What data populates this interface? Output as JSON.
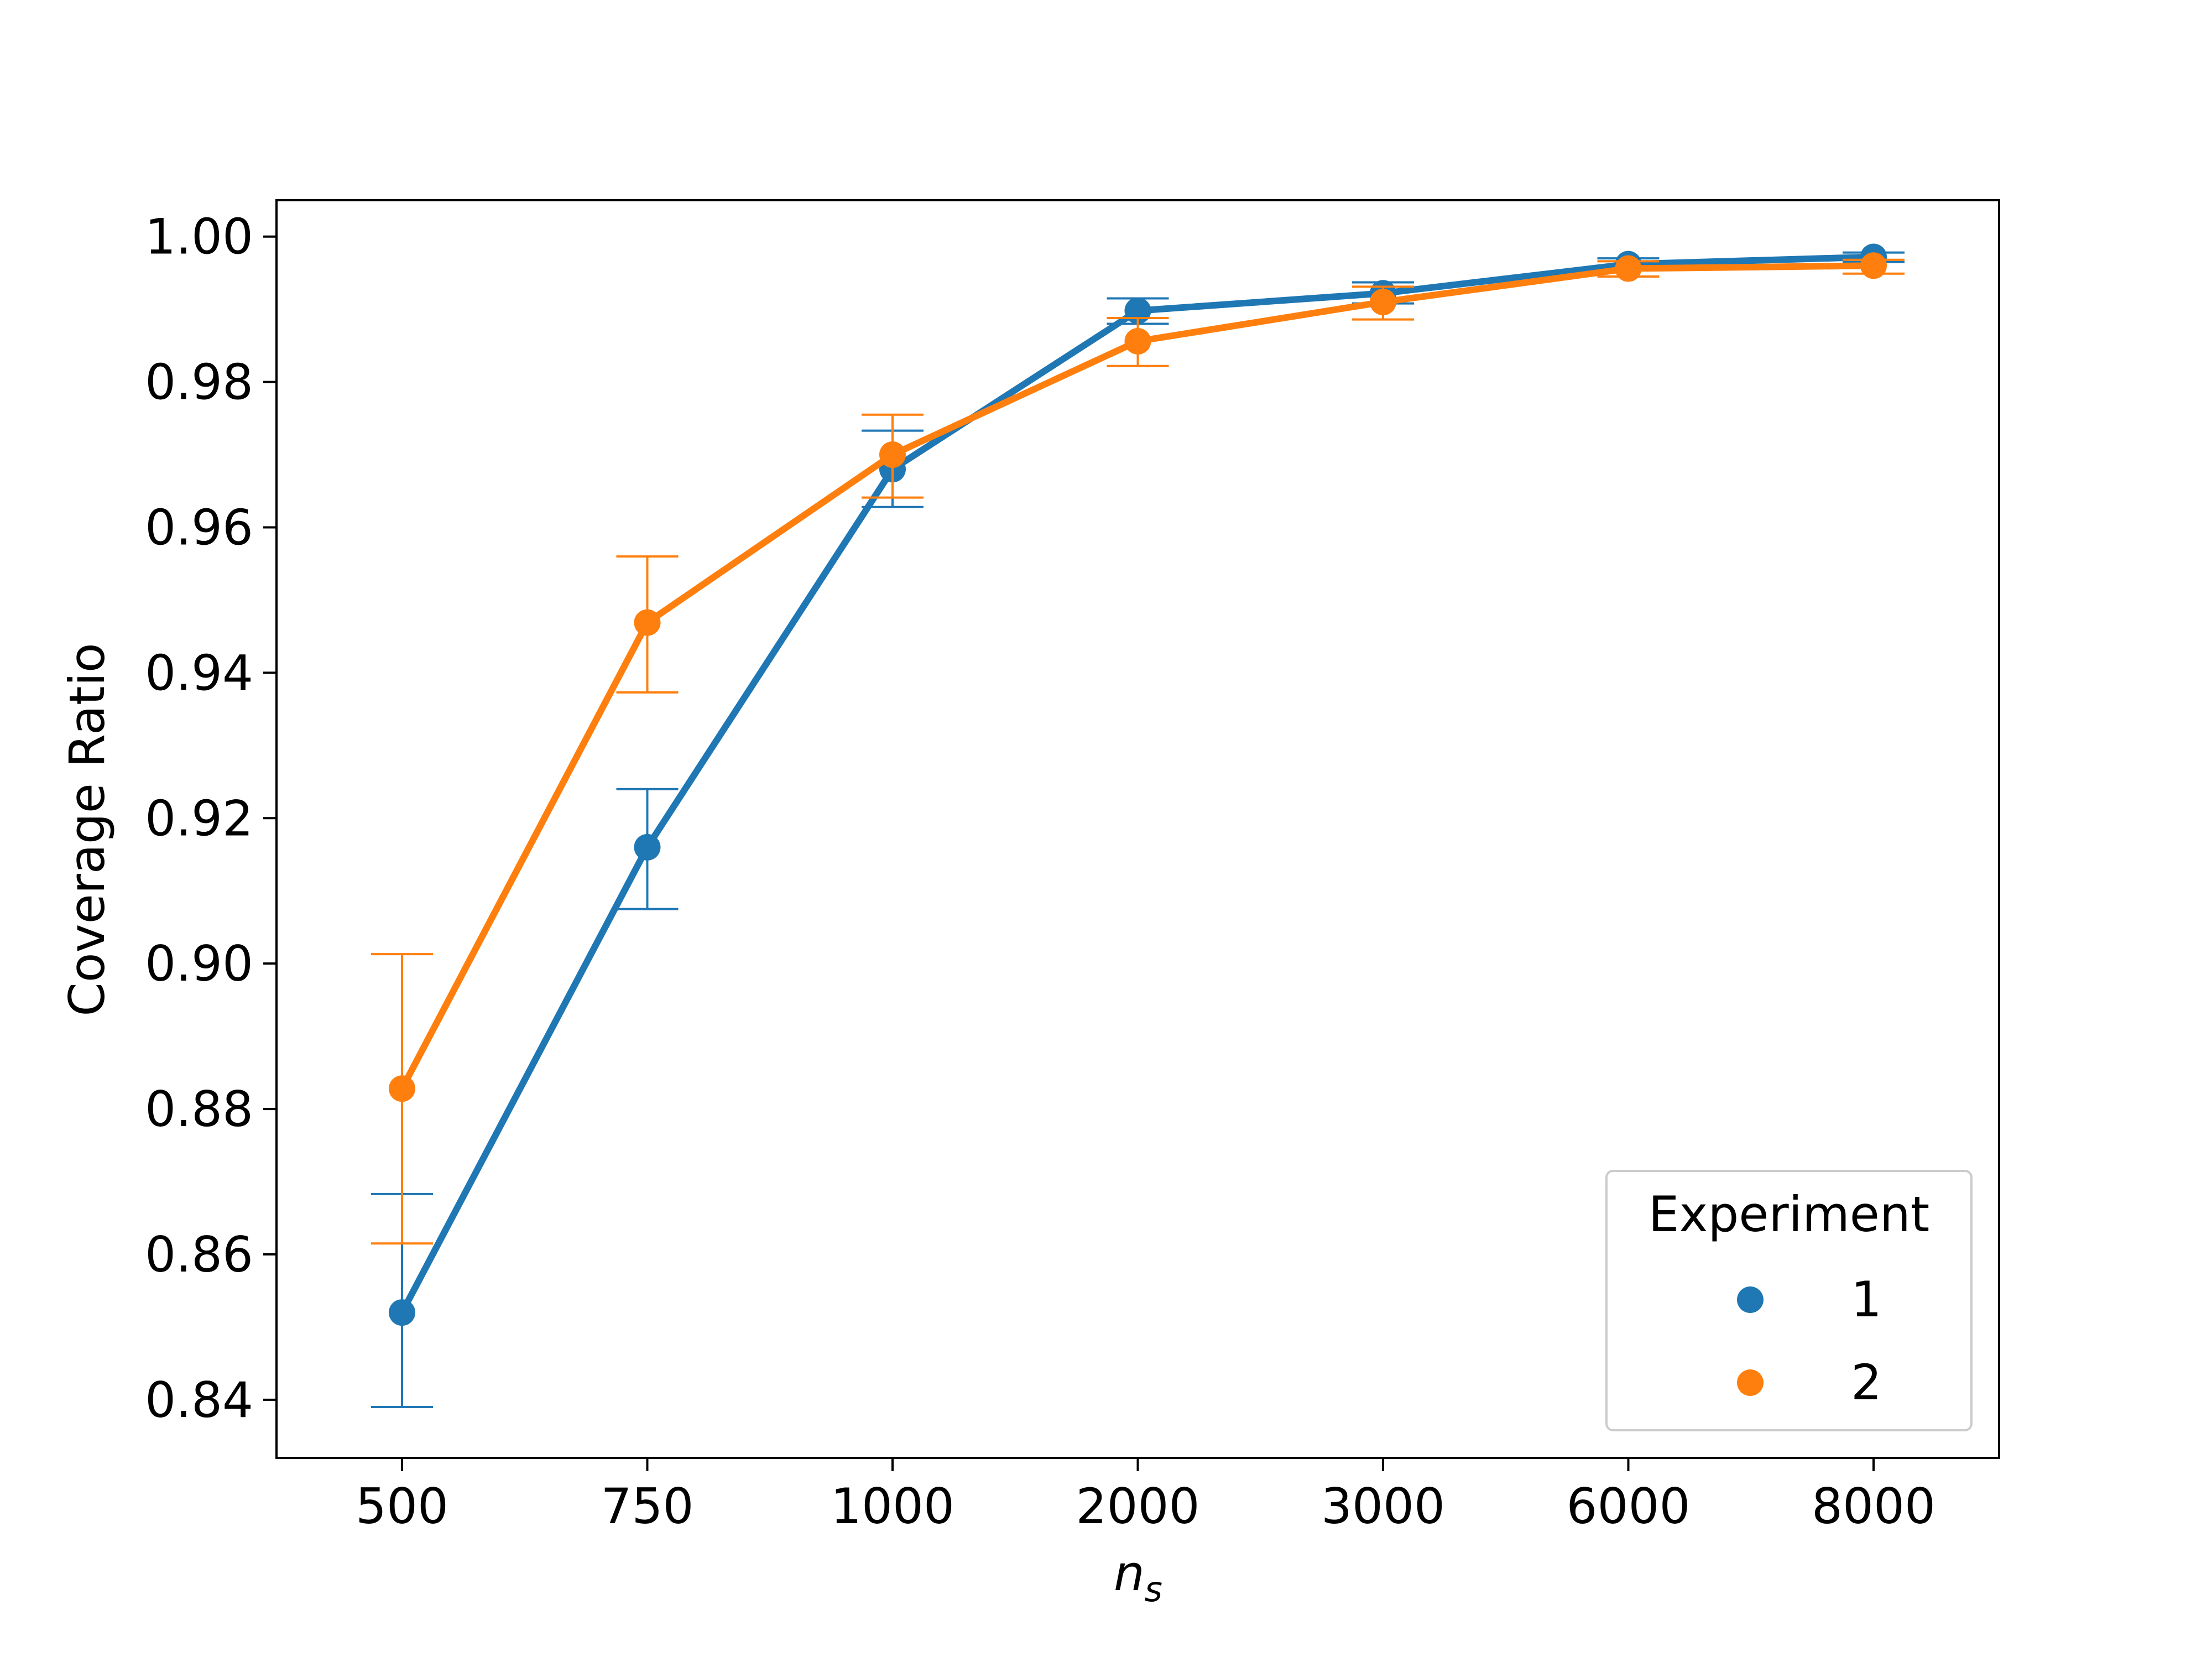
{
  "chart_data": {
    "type": "line",
    "title": "",
    "xlabel_base": "n",
    "xlabel_sub": "s",
    "ylabel": "Coverage Ratio",
    "categories": [
      "500",
      "750",
      "1000",
      "2000",
      "3000",
      "6000",
      "8000"
    ],
    "ylim": [
      0.832,
      1.005
    ],
    "yticks": [
      0.84,
      0.86,
      0.88,
      0.9,
      0.92,
      0.94,
      0.96,
      0.98,
      1.0
    ],
    "ytick_labels": [
      "0.84",
      "0.86",
      "0.88",
      "0.90",
      "0.92",
      "0.94",
      "0.96",
      "0.98",
      "1.00"
    ],
    "grid": false,
    "legend": {
      "title": "Experiment",
      "position": "bottom-right"
    },
    "series": [
      {
        "name": "1",
        "color": "#1f77b4",
        "values": [
          0.852,
          0.916,
          0.968,
          0.9898,
          0.9922,
          0.9962,
          0.9972
        ],
        "err_low": [
          0.839,
          0.9075,
          0.9628,
          0.988,
          0.9908,
          0.9954,
          0.9965
        ],
        "err_high": [
          0.8683,
          0.924,
          0.9733,
          0.9915,
          0.9937,
          0.997,
          0.9978
        ]
      },
      {
        "name": "2",
        "color": "#ff7f0e",
        "values": [
          0.8828,
          0.9469,
          0.97,
          0.9856,
          0.991,
          0.9956,
          0.996
        ],
        "err_low": [
          0.8615,
          0.9373,
          0.9641,
          0.9822,
          0.9886,
          0.9945,
          0.9949
        ],
        "err_high": [
          0.9013,
          0.956,
          0.9755,
          0.9888,
          0.9931,
          0.9966,
          0.9968
        ]
      }
    ]
  }
}
